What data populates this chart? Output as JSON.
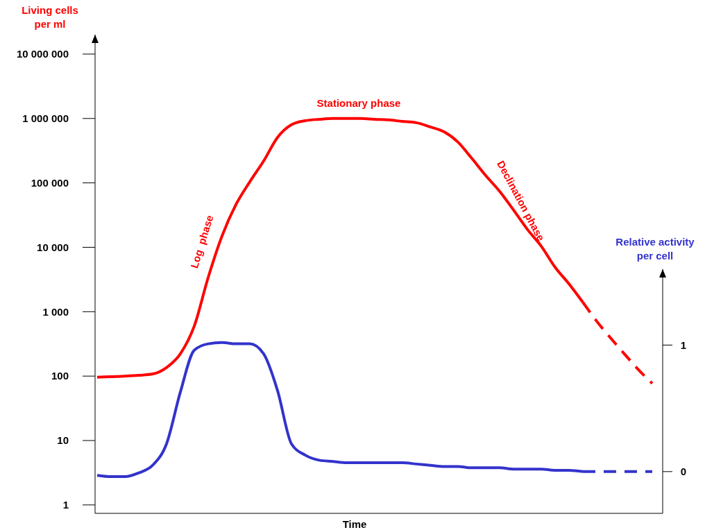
{
  "chart_data": {
    "type": "line",
    "xlabel": "Time",
    "ylabel": "Living cells per ml",
    "y2label": "Relative activity per cell",
    "log": "y",
    "tick_labels": "y",
    "categories": [
      null,
      null,
      null,
      null,
      null,
      null,
      null,
      null,
      null,
      null,
      null,
      null,
      null,
      null,
      null,
      null,
      null,
      null,
      null,
      null,
      null,
      null,
      null,
      null,
      null,
      null,
      null,
      null,
      null,
      null,
      null,
      null,
      null,
      null,
      null,
      null,
      null,
      null,
      null,
      null,
      null
    ],
    "ylim": [
      0.74,
      20000000
    ],
    "yticks": [
      {
        "value": 1,
        "label": "1"
      },
      {
        "value": 10,
        "label": "10"
      },
      {
        "value": 100,
        "label": "100"
      },
      {
        "value": 1000,
        "label": "1 000"
      },
      {
        "value": 10000,
        "label": "10 000"
      },
      {
        "value": 100000,
        "label": "100 000"
      },
      {
        "value": 1000000,
        "label": "1 000 000"
      },
      {
        "value": 10000000,
        "label": "10 000 000"
      }
    ],
    "y2lim": [
      -0.33,
      1.6
    ],
    "y2ticks": [
      0,
      1
    ],
    "series": [
      {
        "color": "#ff0000",
        "line_style": "solid",
        "values": [
          96,
          98,
          100,
          103,
          108,
          136,
          223,
          600,
          3400,
          15000,
          46000,
          104000,
          219000,
          510000,
          800000,
          925000,
          970000,
          1000000,
          1000000,
          1000000,
          970000,
          950000,
          900000,
          860000,
          740000,
          620000,
          430000,
          240000,
          130000,
          74000,
          38000,
          19000,
          10400,
          4900,
          2700,
          1400,
          null,
          null,
          null,
          null,
          null
        ]
      },
      {
        "color": "#ff0000",
        "line_style": "dashed",
        "values": [
          null,
          null,
          null,
          null,
          null,
          null,
          null,
          null,
          null,
          null,
          null,
          null,
          null,
          null,
          null,
          null,
          null,
          null,
          null,
          null,
          null,
          null,
          null,
          null,
          null,
          null,
          null,
          null,
          null,
          null,
          null,
          null,
          null,
          null,
          null,
          1400,
          710,
          390,
          220,
          126,
          77
        ]
      },
      {
        "color": "#3333cc",
        "line_style": "solid",
        "axis": "y2",
        "values": [
          -0.03,
          -0.04,
          -0.04,
          -0.01,
          0.05,
          0.22,
          0.63,
          0.96,
          1.01,
          1.02,
          1.01,
          1.01,
          0.93,
          0.64,
          0.22,
          0.13,
          0.09,
          0.08,
          0.07,
          0.07,
          0.07,
          0.07,
          0.07,
          0.06,
          0.05,
          0.04,
          0.04,
          0.03,
          0.03,
          0.03,
          0.02,
          0.02,
          0.02,
          0.01,
          0.01,
          0,
          null,
          null,
          null,
          null,
          null
        ]
      },
      {
        "color": "#3333cc",
        "line_style": "dashed",
        "axis": "y2",
        "values": [
          null,
          null,
          null,
          null,
          null,
          null,
          null,
          null,
          null,
          null,
          null,
          null,
          null,
          null,
          null,
          null,
          null,
          null,
          null,
          null,
          null,
          null,
          null,
          null,
          null,
          null,
          null,
          null,
          null,
          null,
          null,
          null,
          null,
          null,
          null,
          0,
          0,
          0,
          0,
          0,
          0
        ]
      }
    ],
    "annotations": [
      "Stationary phase",
      "Log  phase",
      "Declination phase"
    ]
  }
}
